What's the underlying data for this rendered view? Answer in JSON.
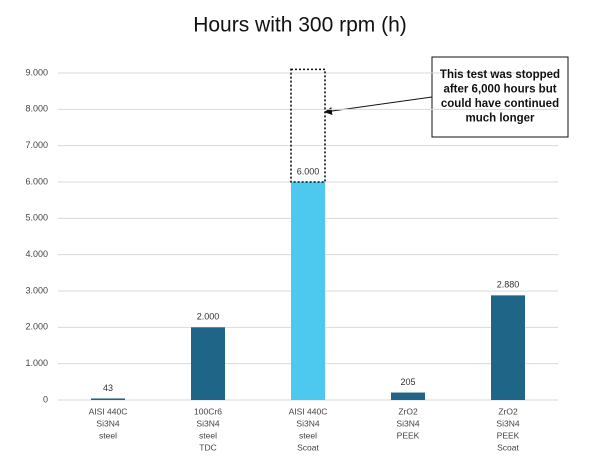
{
  "chart_data": {
    "type": "bar",
    "title": "Hours with 300 rpm (h)",
    "categories": [
      [
        "AISI 440C",
        "Si3N4",
        "steel"
      ],
      [
        "100Cr6",
        "Si3N4",
        "steel",
        "TDC"
      ],
      [
        "AISI 440C",
        "Si3N4",
        "steel",
        "Scoat"
      ],
      [
        "ZrO2",
        "Si3N4",
        "PEEK"
      ],
      [
        "ZrO2",
        "Si3N4",
        "PEEK",
        "Scoat"
      ]
    ],
    "values": [
      43,
      2000,
      6000,
      205,
      2880
    ],
    "value_labels": [
      "43",
      "2.000",
      "6.000",
      "205",
      "2.880"
    ],
    "colors": [
      "#1f6587",
      "#1f6587",
      "#4dc9f0",
      "#1f6587",
      "#1f6587"
    ],
    "ylim": [
      0,
      9100
    ],
    "yticks": [
      0,
      {
        "value": 1000,
        "label": "1.000"
      },
      {
        "value": 2000,
        "label": "2.000"
      },
      {
        "value": 3000,
        "label": "3.000"
      },
      {
        "value": 4000,
        "label": "4.000"
      },
      {
        "value": 5000,
        "label": "5.000"
      },
      {
        "value": 6000,
        "label": "6.000"
      },
      {
        "value": 7000,
        "label": "7.000"
      },
      {
        "value": 8000,
        "label": "8.000"
      },
      {
        "value": 9000,
        "label": "9.000"
      }
    ],
    "grid": true,
    "annotation": [
      "This test was stopped",
      "after 6,000 hours but",
      "could have continued",
      "much longer"
    ]
  }
}
